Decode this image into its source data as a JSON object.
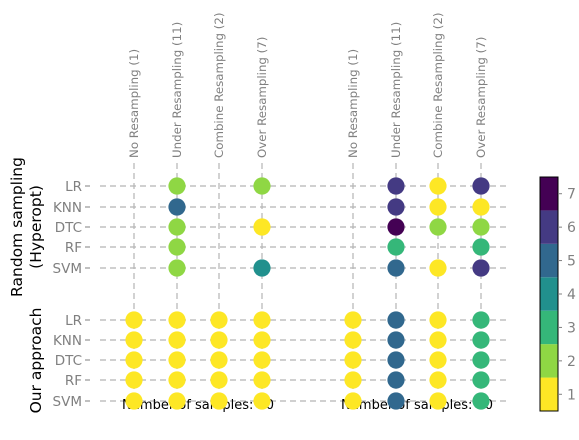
{
  "chart_data": {
    "type": "scatter",
    "panels": [
      {
        "xlabel": "Number of samples: 20",
        "columns": [
          "No Resampling (1)",
          "Under Resampling (11)",
          "Combine Resampling (2)",
          "Over Resampling (7)"
        ]
      },
      {
        "xlabel": "Number of samples: 50",
        "columns": [
          "No Resampling (1)",
          "Under Resampling (11)",
          "Combine Resampling (2)",
          "Over Resampling (7)"
        ]
      }
    ],
    "row_groups": [
      {
        "label_lines": [
          "Random sampling",
          "(Hyperopt)"
        ],
        "rows": [
          "LR",
          "KNN",
          "DTC",
          "RF",
          "SVM"
        ],
        "values": [
          [
            [
              null,
              2,
              null,
              2
            ],
            [
              null,
              6,
              1,
              6
            ]
          ],
          [
            [
              null,
              5,
              null,
              null
            ],
            [
              null,
              6,
              1,
              1
            ]
          ],
          [
            [
              null,
              2,
              null,
              1
            ],
            [
              null,
              7,
              2,
              2
            ]
          ],
          [
            [
              null,
              2,
              null,
              null
            ],
            [
              null,
              3,
              null,
              3
            ]
          ],
          [
            [
              null,
              2,
              null,
              4
            ],
            [
              null,
              5,
              1,
              6
            ]
          ]
        ]
      },
      {
        "label_lines": [
          "Our approach"
        ],
        "rows": [
          "LR",
          "KNN",
          "DTC",
          "RF",
          "SVM"
        ],
        "values": [
          [
            [
              1,
              1,
              1,
              1
            ],
            [
              1,
              5,
              1,
              3
            ]
          ],
          [
            [
              1,
              1,
              1,
              1
            ],
            [
              1,
              5,
              1,
              3
            ]
          ],
          [
            [
              1,
              1,
              1,
              1
            ],
            [
              1,
              5,
              1,
              3
            ]
          ],
          [
            [
              1,
              1,
              1,
              1
            ],
            [
              1,
              5,
              1,
              3
            ]
          ],
          [
            [
              1,
              1,
              1,
              1
            ],
            [
              1,
              5,
              1,
              3
            ]
          ]
        ]
      }
    ],
    "colorbar": {
      "ticks": [
        1,
        2,
        3,
        4,
        5,
        6,
        7
      ],
      "range": [
        0.5,
        7.5
      ],
      "colors": [
        "#fde725",
        "#8fd744",
        "#35b779",
        "#21908d",
        "#31688e",
        "#443a83",
        "#440154"
      ]
    },
    "grid": true
  }
}
